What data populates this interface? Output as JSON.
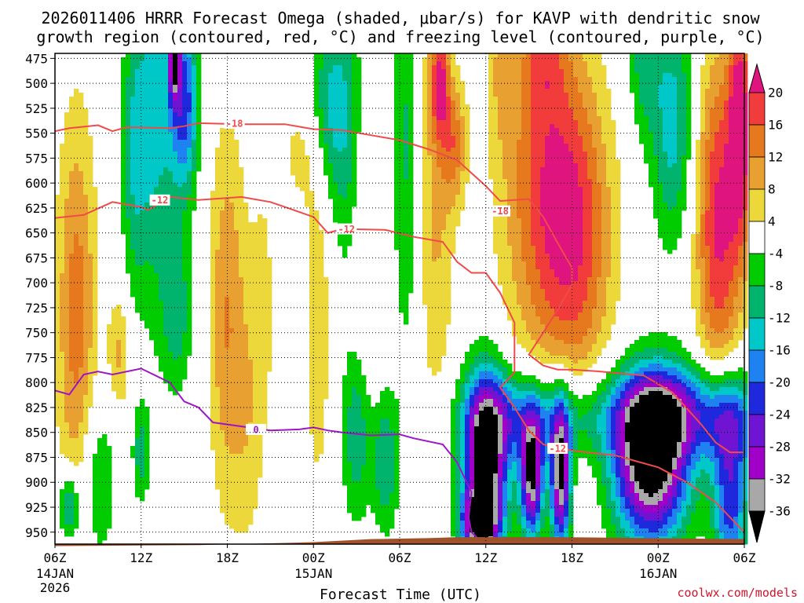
{
  "chart_data": {
    "type": "heatmap",
    "title_lines": [
      "2026011406 HRRR Forecast Omega (shaded, μbar/s) for KAVP with dendritic snow",
      "growth region (contoured, red, °C) and freezing level (contoured, purple, °C)"
    ],
    "xlabel": "Forecast Time (UTC)",
    "credit": "coolwx.com/models",
    "x_range_hours": [
      0,
      48
    ],
    "x_ticks": [
      {
        "h": 0,
        "label": "06Z",
        "sub": [
          "14JAN",
          "2026"
        ]
      },
      {
        "h": 6,
        "label": "12Z",
        "sub": []
      },
      {
        "h": 12,
        "label": "18Z",
        "sub": []
      },
      {
        "h": 18,
        "label": "00Z",
        "sub": [
          "15JAN"
        ]
      },
      {
        "h": 24,
        "label": "06Z",
        "sub": []
      },
      {
        "h": 30,
        "label": "12Z",
        "sub": []
      },
      {
        "h": 36,
        "label": "18Z",
        "sub": []
      },
      {
        "h": 42,
        "label": "00Z",
        "sub": [
          "16JAN"
        ]
      },
      {
        "h": 48,
        "label": "06Z",
        "sub": []
      }
    ],
    "y_range_mb": [
      962,
      470
    ],
    "y_ticks": [
      475,
      500,
      525,
      550,
      575,
      600,
      625,
      650,
      675,
      700,
      725,
      750,
      775,
      800,
      825,
      850,
      875,
      900,
      925,
      950
    ],
    "colorbar": {
      "ticks": [
        20,
        16,
        12,
        8,
        4,
        -4,
        -8,
        -12,
        -16,
        -20,
        -24,
        -28,
        -32,
        -36
      ],
      "bins": [
        {
          "lo": 20,
          "hi": 24,
          "color": "#e0147f"
        },
        {
          "lo": 16,
          "hi": 20,
          "color": "#f23c3c"
        },
        {
          "lo": 12,
          "hi": 16,
          "color": "#e6781e"
        },
        {
          "lo": 8,
          "hi": 12,
          "color": "#e8a030"
        },
        {
          "lo": 4,
          "hi": 8,
          "color": "#ecd83a"
        },
        {
          "lo": -4,
          "hi": 4,
          "color": "#ffffff"
        },
        {
          "lo": -8,
          "hi": -4,
          "color": "#00cc00"
        },
        {
          "lo": -12,
          "hi": -8,
          "color": "#00b46e"
        },
        {
          "lo": -16,
          "hi": -12,
          "color": "#00c8c8"
        },
        {
          "lo": -20,
          "hi": -16,
          "color": "#1e82f0"
        },
        {
          "lo": -24,
          "hi": -20,
          "color": "#1e28dc"
        },
        {
          "lo": -28,
          "hi": -24,
          "color": "#6e14d2"
        },
        {
          "lo": -32,
          "hi": -28,
          "color": "#a000c8"
        },
        {
          "lo": -36,
          "hi": -32,
          "color": "#a8a8a8"
        },
        {
          "lo": -40,
          "hi": -36,
          "color": "#000000"
        }
      ]
    },
    "omega_features": [
      {
        "h": 1.5,
        "p": 730,
        "dh": 1.4,
        "dp": 200,
        "v": 14
      },
      {
        "h": 4.5,
        "p": 770,
        "dh": 0.8,
        "dp": 60,
        "v": 9
      },
      {
        "h": 3.0,
        "p": 900,
        "dh": 1.2,
        "dp": 80,
        "v": -9
      },
      {
        "h": 1.0,
        "p": 925,
        "dh": 0.7,
        "dp": 35,
        "v": -16
      },
      {
        "h": 5.5,
        "p": 570,
        "dh": 0.9,
        "dp": 140,
        "v": -10
      },
      {
        "h": 7.0,
        "p": 530,
        "dh": 1.4,
        "dp": 190,
        "v": -13
      },
      {
        "h": 9.0,
        "p": 520,
        "dh": 1.0,
        "dp": 90,
        "v": -22
      },
      {
        "h": 8.5,
        "p": 730,
        "dh": 1.1,
        "dp": 80,
        "v": -10
      },
      {
        "h": 6.0,
        "p": 870,
        "dh": 0.6,
        "dp": 50,
        "v": -10
      },
      {
        "h": 8.3,
        "p": 470,
        "dh": 0.4,
        "dp": 45,
        "v": -28
      },
      {
        "h": 12.0,
        "p": 735,
        "dh": 1.3,
        "dp": 190,
        "v": 12
      },
      {
        "h": 13.5,
        "p": 850,
        "dh": 1.0,
        "dp": 130,
        "v": 5
      },
      {
        "h": 14.5,
        "p": 720,
        "dh": 1.0,
        "dp": 150,
        "v": 5
      },
      {
        "h": 18.3,
        "p": 730,
        "dh": 1.0,
        "dp": 200,
        "v": 7
      },
      {
        "h": 17.0,
        "p": 570,
        "dh": 1.4,
        "dp": 60,
        "v": 5
      },
      {
        "h": 21.5,
        "p": 650,
        "dh": 1.2,
        "dp": 180,
        "v": 6
      },
      {
        "h": 19.0,
        "p": 520,
        "dh": 1.3,
        "dp": 90,
        "v": -12
      },
      {
        "h": 20.5,
        "p": 560,
        "dh": 1.2,
        "dp": 160,
        "v": -10
      },
      {
        "h": 21.0,
        "p": 850,
        "dh": 1.0,
        "dp": 90,
        "v": -12
      },
      {
        "h": 23.0,
        "p": 880,
        "dh": 0.9,
        "dp": 70,
        "v": -12
      },
      {
        "h": 24.5,
        "p": 560,
        "dh": 1.0,
        "dp": 220,
        "v": -9
      },
      {
        "h": 26.5,
        "p": 600,
        "dh": 1.3,
        "dp": 250,
        "v": 9
      },
      {
        "h": 26.8,
        "p": 500,
        "dh": 0.6,
        "dp": 50,
        "v": 16
      },
      {
        "h": 27.8,
        "p": 560,
        "dh": 0.9,
        "dp": 60,
        "v": 12
      },
      {
        "h": 31.0,
        "p": 480,
        "dh": 0.8,
        "dp": 80,
        "v": 6
      },
      {
        "h": 34.0,
        "p": 600,
        "dh": 3.0,
        "dp": 180,
        "v": 16
      },
      {
        "h": 36.5,
        "p": 660,
        "dh": 2.5,
        "dp": 160,
        "v": 14
      },
      {
        "h": 34.0,
        "p": 470,
        "dh": 1.5,
        "dp": 60,
        "v": 8
      },
      {
        "h": 41.0,
        "p": 470,
        "dh": 1.1,
        "dp": 80,
        "v": -10
      },
      {
        "h": 43.0,
        "p": 540,
        "dh": 1.5,
        "dp": 120,
        "v": -14
      },
      {
        "h": 46.2,
        "p": 640,
        "dh": 1.6,
        "dp": 170,
        "v": 21
      },
      {
        "h": 47.7,
        "p": 540,
        "dh": 0.8,
        "dp": 120,
        "v": 22
      },
      {
        "h": 33.0,
        "p": 835,
        "dh": 4.5,
        "dp": 45,
        "v": -18
      },
      {
        "h": 43.0,
        "p": 830,
        "dh": 4.5,
        "dp": 45,
        "v": -22
      },
      {
        "h": 47.0,
        "p": 850,
        "dh": 1.6,
        "dp": 60,
        "v": -20
      },
      {
        "h": 47.0,
        "p": 935,
        "dh": 1.2,
        "dp": 60,
        "v": -20
      },
      {
        "h": 30.0,
        "p": 885,
        "dh": 1.5,
        "dp": 90,
        "v": -40
      },
      {
        "h": 33.2,
        "p": 895,
        "dh": 0.8,
        "dp": 60,
        "v": -37
      },
      {
        "h": 35.2,
        "p": 895,
        "dh": 0.7,
        "dp": 70,
        "v": -38
      },
      {
        "h": 41.5,
        "p": 880,
        "dh": 2.6,
        "dp": 80,
        "v": -42
      },
      {
        "h": 29.5,
        "p": 940,
        "dh": 1.2,
        "dp": 30,
        "v": -28
      }
    ],
    "contours": [
      {
        "label": "-18",
        "color": "#f04a4a",
        "points": [
          [
            0,
            548
          ],
          [
            1,
            545
          ],
          [
            3,
            542
          ],
          [
            4,
            548
          ],
          [
            5,
            544
          ],
          [
            8,
            545
          ],
          [
            9,
            543
          ],
          [
            10,
            540
          ],
          [
            13,
            541
          ],
          [
            16,
            541
          ],
          [
            18,
            546
          ],
          [
            20,
            547
          ],
          [
            22,
            552
          ],
          [
            24,
            557
          ],
          [
            26,
            566
          ],
          [
            28,
            577
          ],
          [
            30,
            603
          ],
          [
            31,
            618
          ],
          [
            33,
            616
          ],
          [
            34,
            634
          ],
          [
            35,
            660
          ],
          [
            36,
            685
          ],
          [
            36,
            702
          ],
          [
            35,
            727
          ],
          [
            34,
            750
          ],
          [
            33,
            772
          ],
          [
            34,
            783
          ],
          [
            35,
            787
          ],
          [
            36,
            787
          ],
          [
            38,
            789
          ],
          [
            41,
            793
          ],
          [
            43,
            810
          ],
          [
            45,
            842
          ],
          [
            46,
            860
          ],
          [
            47,
            870
          ],
          [
            48,
            870
          ]
        ],
        "label_at": [
          [
            12.5,
            540
          ],
          [
            31,
            628
          ]
        ]
      },
      {
        "label": "-12",
        "color": "#f04a4a",
        "points": [
          [
            0,
            635
          ],
          [
            2,
            632
          ],
          [
            4,
            619
          ],
          [
            6,
            624
          ],
          [
            6.5,
            627
          ],
          [
            8,
            614
          ],
          [
            10,
            617
          ],
          [
            13,
            614
          ],
          [
            15,
            619
          ],
          [
            16,
            624
          ],
          [
            18,
            634
          ],
          [
            19,
            650
          ],
          [
            20,
            646
          ],
          [
            23,
            647
          ],
          [
            25,
            654
          ],
          [
            27,
            659
          ],
          [
            28,
            679
          ],
          [
            29,
            690
          ],
          [
            30,
            690
          ],
          [
            31,
            710
          ],
          [
            32,
            740
          ],
          [
            32,
            760
          ],
          [
            32,
            790
          ],
          [
            31,
            805
          ],
          [
            32,
            825
          ],
          [
            33,
            848
          ],
          [
            34,
            862
          ],
          [
            35,
            866
          ],
          [
            37,
            870
          ],
          [
            39,
            873
          ],
          [
            42,
            885
          ],
          [
            44,
            900
          ],
          [
            46,
            920
          ],
          [
            48,
            950
          ]
        ],
        "label_at": [
          [
            7.3,
            617
          ],
          [
            20.3,
            646
          ],
          [
            35,
            866
          ]
        ]
      },
      {
        "label": "0",
        "color": "#a014c8",
        "points": [
          [
            0,
            808
          ],
          [
            1,
            812
          ],
          [
            2,
            792
          ],
          [
            3,
            789
          ],
          [
            4,
            792
          ],
          [
            6,
            786
          ],
          [
            8,
            800
          ],
          [
            9,
            819
          ],
          [
            10,
            825
          ],
          [
            11,
            840
          ],
          [
            13,
            844
          ],
          [
            15,
            848
          ],
          [
            17,
            847
          ],
          [
            18,
            845
          ],
          [
            19,
            848
          ],
          [
            20,
            850
          ],
          [
            22,
            853
          ],
          [
            24,
            852
          ],
          [
            25,
            856
          ],
          [
            27,
            862
          ],
          [
            28,
            880
          ],
          [
            28.5,
            895
          ],
          [
            29,
            910
          ],
          [
            28.8,
            935
          ],
          [
            29,
            950
          ],
          [
            29.5,
            957
          ]
        ],
        "label_at": [
          [
            14,
            847
          ]
        ]
      }
    ],
    "terrain_surface_mb": [
      [
        0,
        964
      ],
      [
        10,
        963
      ],
      [
        18,
        960
      ],
      [
        22,
        957
      ],
      [
        26,
        956
      ],
      [
        28,
        955
      ],
      [
        35,
        955
      ],
      [
        48,
        957
      ]
    ],
    "terrain_color": "#a0522d"
  }
}
